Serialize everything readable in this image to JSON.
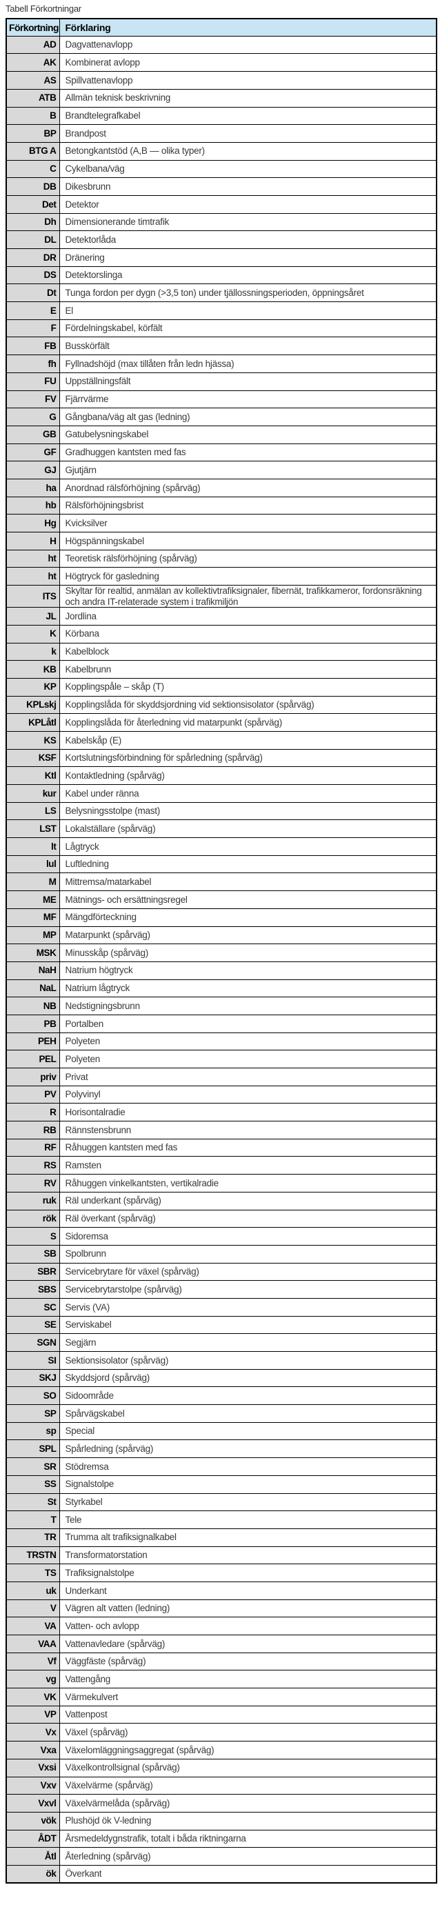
{
  "title": "Tabell Förkortningar",
  "colors": {
    "header_bg": "#c9e4f2",
    "abbr_col_bg": "#d9d9d9",
    "border": "#000000",
    "desc_text": "#3a3a3a"
  },
  "table": {
    "headers": {
      "abbreviation": "Förkortning",
      "explanation": "Förklaring"
    },
    "rows": [
      [
        "AD",
        "Dagvattenavlopp"
      ],
      [
        "AK",
        "Kombinerat avlopp"
      ],
      [
        "AS",
        "Spillvattenavlopp"
      ],
      [
        "ATB",
        "Allmän teknisk beskrivning"
      ],
      [
        "B",
        "Brandtelegrafkabel"
      ],
      [
        "BP",
        "Brandpost"
      ],
      [
        "BTG A",
        "Betongkantstöd (A,B — olika typer)"
      ],
      [
        "C",
        "Cykelbana/väg"
      ],
      [
        "DB",
        "Dikesbrunn"
      ],
      [
        "Det",
        "Detektor"
      ],
      [
        "Dh",
        "Dimensionerande timtrafik"
      ],
      [
        "DL",
        "Detektorlåda"
      ],
      [
        "DR",
        "Dränering"
      ],
      [
        "DS",
        "Detektorslinga"
      ],
      [
        "Dt",
        "Tunga fordon per dygn (>3,5 ton) under tjällossningsperioden, öppningsåret"
      ],
      [
        "E",
        "El"
      ],
      [
        "F",
        "Fördelningskabel, körfält"
      ],
      [
        "FB",
        "Busskörfält"
      ],
      [
        "fh",
        "Fyllnadshöjd (max tillåten från ledn hjässa)"
      ],
      [
        "FU",
        "Uppställningsfält"
      ],
      [
        "FV",
        "Fjärrvärme"
      ],
      [
        "G",
        "Gångbana/väg alt gas (ledning)"
      ],
      [
        "GB",
        "Gatubelysningskabel"
      ],
      [
        "GF",
        "Gradhuggen kantsten med fas"
      ],
      [
        "GJ",
        "Gjutjärn"
      ],
      [
        "ha",
        "Anordnad rälsförhöjning (spårväg)"
      ],
      [
        "hb",
        "Rälsförhöjningsbrist"
      ],
      [
        "Hg",
        "Kvicksilver"
      ],
      [
        "H",
        "Högspänningskabel"
      ],
      [
        "ht",
        "Teoretisk rälsförhöjning (spårväg)"
      ],
      [
        "ht",
        "Högtryck för gasledning"
      ],
      [
        "ITS",
        "Skyltar för realtid, anmälan av kollektivtrafiksignaler, fibernät, trafikkameror, fordonsräkning och andra IT-relaterade system i trafikmiljön"
      ],
      [
        "JL",
        "Jordlina"
      ],
      [
        "K",
        "Körbana"
      ],
      [
        "k",
        "Kabelblock"
      ],
      [
        "KB",
        "Kabelbrunn"
      ],
      [
        "KP",
        "Kopplingspåle – skåp (T)"
      ],
      [
        "KPLskj",
        "Kopplingslåda för skyddsjordning vid sektionsisolator (spårväg)"
      ],
      [
        "KPLåtl",
        "Kopplingslåda för återledning vid matarpunkt (spårväg)"
      ],
      [
        "KS",
        "Kabelskåp (E)"
      ],
      [
        "KSF",
        "Kortslutningsförbindning för spårledning (spårväg)"
      ],
      [
        "Ktl",
        "Kontaktledning (spårväg)"
      ],
      [
        "kur",
        "Kabel under ränna"
      ],
      [
        "LS",
        "Belysningsstolpe (mast)"
      ],
      [
        "LST",
        "Lokalställare (spårväg)"
      ],
      [
        "lt",
        "Lågtryck"
      ],
      [
        "lul",
        "Luftledning"
      ],
      [
        "M",
        "Mittremsa/matarkabel"
      ],
      [
        "ME",
        "Mätnings- och ersättningsregel"
      ],
      [
        "MF",
        "Mängdförteckning"
      ],
      [
        "MP",
        "Matarpunkt (spårväg)"
      ],
      [
        "MSK",
        "Minusskåp (spårväg)"
      ],
      [
        "NaH",
        "Natrium högtryck"
      ],
      [
        "NaL",
        "Natrium lågtryck"
      ],
      [
        "NB",
        "Nedstigningsbrunn"
      ],
      [
        "PB",
        "Portalben"
      ],
      [
        "PEH",
        "Polyeten"
      ],
      [
        "PEL",
        "Polyeten"
      ],
      [
        "priv",
        "Privat"
      ],
      [
        "PV",
        "Polyvinyl"
      ],
      [
        "R",
        "Horisontalradie"
      ],
      [
        "RB",
        "Rännstensbrunn"
      ],
      [
        "RF",
        "Råhuggen kantsten med fas"
      ],
      [
        "RS",
        "Ramsten"
      ],
      [
        "RV",
        "Råhuggen vinkelkantsten, vertikalradie"
      ],
      [
        "ruk",
        "Räl underkant (spårväg)"
      ],
      [
        "rök",
        "Räl överkant (spårväg)"
      ],
      [
        "S",
        "Sidoremsa"
      ],
      [
        "SB",
        "Spolbrunn"
      ],
      [
        "SBR",
        "Servicebrytare för växel (spårväg)"
      ],
      [
        "SBS",
        "Servicebrytarstolpe (spårväg)"
      ],
      [
        "SC",
        "Servis (VA)"
      ],
      [
        "SE",
        "Serviskabel"
      ],
      [
        "SGN",
        "Segjärn"
      ],
      [
        "SI",
        "Sektionsisolator (spårväg)"
      ],
      [
        "SKJ",
        "Skyddsjord (spårväg)"
      ],
      [
        "SO",
        "Sidoområde"
      ],
      [
        "SP",
        "Spårvägskabel"
      ],
      [
        "sp",
        "Special"
      ],
      [
        "SPL",
        "Spårledning (spårväg)"
      ],
      [
        "SR",
        "Stödremsa"
      ],
      [
        "SS",
        "Signalstolpe"
      ],
      [
        "St",
        "Styrkabel"
      ],
      [
        "T",
        "Tele"
      ],
      [
        "TR",
        "Trumma alt trafiksignalkabel"
      ],
      [
        "TRSTN",
        "Transformatorstation"
      ],
      [
        "TS",
        "Trafiksignalstolpe"
      ],
      [
        "uk",
        "Underkant"
      ],
      [
        "V",
        "Vägren alt vatten (ledning)"
      ],
      [
        "VA",
        "Vatten- och avlopp"
      ],
      [
        "VAA",
        "Vattenavledare (spårväg)"
      ],
      [
        "Vf",
        "Väggfäste (spårväg)"
      ],
      [
        "vg",
        "Vattengång"
      ],
      [
        "VK",
        "Värmekulvert"
      ],
      [
        "VP",
        "Vattenpost"
      ],
      [
        "Vx",
        "Växel (spårväg)"
      ],
      [
        "Vxa",
        "Växelomläggningsaggregat (spårväg)"
      ],
      [
        "Vxsi",
        "Växelkontrollsignal (spårväg)"
      ],
      [
        "Vxv",
        "Växelvärme (spårväg)"
      ],
      [
        "Vxvl",
        "Växelvärmelåda (spårväg)"
      ],
      [
        "vök",
        "Plushöjd ök V-ledning"
      ],
      [
        "ÅDT",
        "Årsmedeldygnstrafik, totalt i båda riktningarna"
      ],
      [
        "Åtl",
        "Återledning (spårväg)"
      ],
      [
        "ök",
        "Överkant"
      ]
    ]
  }
}
